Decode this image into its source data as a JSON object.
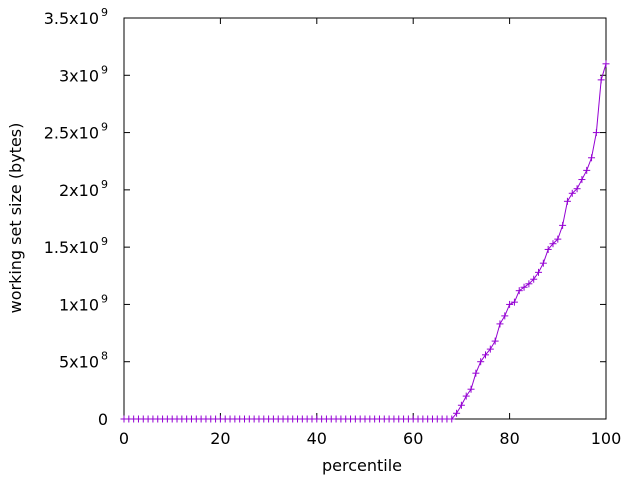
{
  "chart_data": {
    "type": "line",
    "title": "",
    "xlabel": "percentile",
    "ylabel": "working set size (bytes)",
    "xlim": [
      0,
      100
    ],
    "ylim": [
      0,
      3500000000
    ],
    "grid": false,
    "legend": "none",
    "line_color": "#9400d3",
    "marker": "plus",
    "x_ticks": [
      {
        "value": 0,
        "label": "0"
      },
      {
        "value": 20,
        "label": "20"
      },
      {
        "value": 40,
        "label": "40"
      },
      {
        "value": 60,
        "label": "60"
      },
      {
        "value": 80,
        "label": "80"
      },
      {
        "value": 100,
        "label": "100"
      }
    ],
    "y_ticks": [
      {
        "value": 0,
        "mantissa": "0",
        "exponent": ""
      },
      {
        "value": 500000000,
        "mantissa": "5x10",
        "exponent": "8"
      },
      {
        "value": 1000000000,
        "mantissa": "1x10",
        "exponent": "9"
      },
      {
        "value": 1500000000,
        "mantissa": "1.5x10",
        "exponent": "9"
      },
      {
        "value": 2000000000,
        "mantissa": "2x10",
        "exponent": "9"
      },
      {
        "value": 2500000000,
        "mantissa": "2.5x10",
        "exponent": "9"
      },
      {
        "value": 3000000000,
        "mantissa": "3x10",
        "exponent": "9"
      },
      {
        "value": 3500000000,
        "mantissa": "3.5x10",
        "exponent": "9"
      }
    ],
    "series": [
      {
        "x": [
          0,
          1,
          2,
          3,
          4,
          5,
          6,
          7,
          8,
          9,
          10,
          11,
          12,
          13,
          14,
          15,
          16,
          17,
          18,
          19,
          20,
          21,
          22,
          23,
          24,
          25,
          26,
          27,
          28,
          29,
          30,
          31,
          32,
          33,
          34,
          35,
          36,
          37,
          38,
          39,
          40,
          41,
          42,
          43,
          44,
          45,
          46,
          47,
          48,
          49,
          50,
          51,
          52,
          53,
          54,
          55,
          56,
          57,
          58,
          59,
          60,
          61,
          62,
          63,
          64,
          65,
          66,
          67,
          68,
          69,
          70,
          71,
          72,
          73,
          74,
          75,
          76,
          77,
          78,
          79,
          80,
          81,
          82,
          83,
          84,
          85,
          86,
          87,
          88,
          89,
          90,
          91,
          92,
          93,
          94,
          95,
          96,
          97,
          98,
          99,
          100
        ],
        "y": [
          0,
          0,
          0,
          0,
          0,
          0,
          0,
          0,
          0,
          0,
          0,
          0,
          0,
          0,
          0,
          0,
          0,
          0,
          0,
          0,
          0,
          0,
          0,
          0,
          0,
          0,
          0,
          0,
          0,
          0,
          0,
          0,
          0,
          0,
          0,
          0,
          0,
          0,
          0,
          0,
          0,
          0,
          0,
          0,
          0,
          0,
          0,
          0,
          0,
          0,
          0,
          0,
          0,
          0,
          0,
          0,
          0,
          0,
          0,
          0,
          0,
          0,
          0,
          0,
          0,
          0,
          0,
          0,
          0,
          50000000,
          120000000,
          200000000,
          260000000,
          400000000,
          500000000,
          560000000,
          610000000,
          680000000,
          830000000,
          900000000,
          1000000000,
          1020000000,
          1120000000,
          1150000000,
          1180000000,
          1220000000,
          1280000000,
          1360000000,
          1480000000,
          1530000000,
          1570000000,
          1690000000,
          1900000000,
          1970000000,
          2010000000,
          2090000000,
          2170000000,
          2280000000,
          2500000000,
          2960000000,
          3100000000
        ]
      }
    ]
  }
}
